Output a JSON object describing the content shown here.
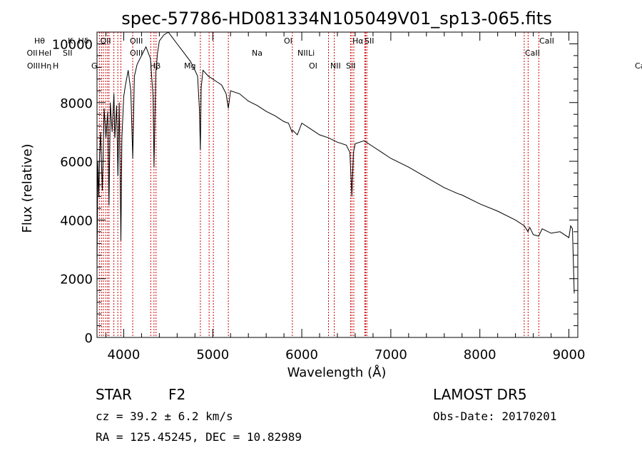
{
  "chart_data": {
    "type": "line",
    "title": "spec-57786-HD081334N105049V01_sp13-065.fits",
    "xlabel": "Wavelength (Å)",
    "ylabel": "Flux (relative)",
    "xlim": [
      3700,
      9100
    ],
    "ylim": [
      0,
      10400
    ],
    "xticks": [
      4000,
      5000,
      6000,
      7000,
      8000,
      9000
    ],
    "yticks": [
      0,
      2000,
      4000,
      6000,
      8000,
      10000
    ],
    "grid": false,
    "series": [
      {
        "x": [
          3700,
          3710,
          3720,
          3730,
          3740,
          3760,
          3780,
          3800,
          3820,
          3835,
          3850,
          3870,
          3890,
          3900,
          3920,
          3935,
          3950,
          3968,
          3980,
          4000,
          4020,
          4050,
          4080,
          4101,
          4120,
          4150,
          4200,
          4250,
          4300,
          4330,
          4340,
          4360,
          4380,
          4400,
          4450,
          4500,
          4550,
          4600,
          4650,
          4700,
          4750,
          4800,
          4830,
          4850,
          4861,
          4870,
          4890,
          4920,
          4950,
          5000,
          5050,
          5100,
          5150,
          5175,
          5200,
          5300,
          5400,
          5500,
          5600,
          5700,
          5800,
          5850,
          5890,
          5900,
          5950,
          6000,
          6100,
          6200,
          6300,
          6400,
          6500,
          6540,
          6563,
          6580,
          6600,
          6700,
          6800,
          6900,
          7000,
          7200,
          7400,
          7600,
          7750,
          7800,
          8000,
          8200,
          8400,
          8500,
          8540,
          8560,
          8600,
          8660,
          8700,
          8800,
          8900,
          9000,
          9020,
          9040,
          9060
        ],
        "y": [
          2400,
          6000,
          4800,
          6200,
          7000,
          5000,
          7800,
          6800,
          7700,
          4500,
          8000,
          7000,
          8300,
          6800,
          7900,
          5500,
          8000,
          3300,
          6800,
          8200,
          8600,
          9100,
          8400,
          6100,
          8900,
          9300,
          9600,
          9900,
          9500,
          8200,
          5800,
          9000,
          9700,
          10100,
          10300,
          10400,
          10200,
          10000,
          9800,
          9600,
          9400,
          9100,
          8900,
          7800,
          6400,
          8500,
          9100,
          9000,
          8900,
          8800,
          8700,
          8600,
          8300,
          7800,
          8400,
          8300,
          8050,
          7900,
          7700,
          7550,
          7350,
          7300,
          7000,
          7050,
          6900,
          7300,
          7100,
          6900,
          6800,
          6650,
          6550,
          6300,
          4800,
          6300,
          6600,
          6700,
          6500,
          6300,
          6100,
          5800,
          5450,
          5100,
          4900,
          4850,
          4550,
          4300,
          4000,
          3800,
          3600,
          3750,
          3500,
          3450,
          3700,
          3550,
          3600,
          3400,
          3800,
          3700,
          1500
        ]
      }
    ],
    "lines": [
      {
        "wl": 3727,
        "label": "OII"
      },
      {
        "wl": 3750,
        "label": "Hθ"
      },
      {
        "wl": 3771,
        "label": "Hη"
      },
      {
        "wl": 3798,
        "label": "Hθ"
      },
      {
        "wl": 3819,
        "label": "HeI"
      },
      {
        "wl": 3835,
        "label": "Hη"
      },
      {
        "wl": 3889,
        "label": "Hζ"
      },
      {
        "wl": 3934,
        "label": "K"
      },
      {
        "wl": 3968,
        "label": "SII"
      },
      {
        "wl": 4101,
        "label": "Hδ"
      },
      {
        "wl": 4304,
        "label": "G"
      },
      {
        "wl": 4340,
        "label": "Hγ"
      },
      {
        "wl": 4363,
        "label": "OIII"
      },
      {
        "wl": 4861,
        "label": "Hβ"
      },
      {
        "wl": 4959,
        "label": "OIII"
      },
      {
        "wl": 5007,
        "label": "OIII"
      },
      {
        "wl": 5175,
        "label": "Mg"
      },
      {
        "wl": 5894,
        "label": "Na"
      },
      {
        "wl": 6300,
        "label": "OI"
      },
      {
        "wl": 6364,
        "label": "OI"
      },
      {
        "wl": 6548,
        "label": "NII"
      },
      {
        "wl": 6563,
        "label": "Hα"
      },
      {
        "wl": 6584,
        "label": "NII"
      },
      {
        "wl": 6707,
        "label": "Li"
      },
      {
        "wl": 6717,
        "label": "SII"
      },
      {
        "wl": 6731,
        "label": "SII"
      },
      {
        "wl": 8498,
        "label": "CaII"
      },
      {
        "wl": 8542,
        "label": "CaII"
      },
      {
        "wl": 8662,
        "label": "CaII"
      }
    ]
  },
  "labels": {
    "row1": [
      "Hθ",
      "K",
      "Hδ",
      "OII",
      "OIII",
      "OI",
      "Hα",
      "SII",
      "CaII"
    ],
    "row2": [
      "OII",
      "HeI",
      "SII",
      "OIII",
      "Na",
      "NII",
      "Li",
      "CaII"
    ],
    "row3": [
      "OIII",
      "Hη",
      "H",
      "G",
      "Hβ",
      "Mg",
      "OI",
      "NII",
      "SII",
      "CaII"
    ]
  },
  "info": {
    "object": "STAR",
    "subclass": "F2",
    "survey": "LAMOST  DR5",
    "cz": "cz = 39.2 ± 6.2 km/s",
    "obs_date": "Obs-Date: 20170201",
    "radec": "RA = 125.45245, DEC =  10.82989"
  }
}
